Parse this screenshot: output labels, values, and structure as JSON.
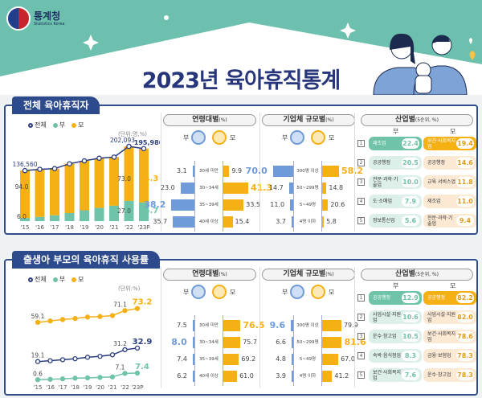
{
  "header": {
    "org_name": "통계청",
    "org_name_en": "Statistics Korea",
    "title": "2023년 육아휴직통계"
  },
  "colors": {
    "navy": "#2b3d7c",
    "father": "#6fc3a8",
    "mother": "#f5b014",
    "father_bar": "#6f9bd8",
    "teal": "#6cc0ad"
  },
  "legend": {
    "total": "전체",
    "father": "부",
    "mother": "모"
  },
  "sections": [
    {
      "title": "전체 육아휴직자",
      "unit": "(단위:명,%)",
      "age_heading": "연령대별",
      "age_unit": "(%)",
      "size_heading": "기업체 규모별",
      "size_unit": "(%)",
      "industry_heading": "산업별",
      "industry_unit": "(5순위, %)"
    },
    {
      "title": "출생아 부모의 육아휴직 사용률",
      "unit": "(단위:%)",
      "age_heading": "연령대별",
      "age_unit": "(%)",
      "size_heading": "기업체 규모별",
      "size_unit": "(%)",
      "industry_heading": "산업별",
      "industry_unit": "(5순위, %)"
    }
  ],
  "chart_data": [
    {
      "type": "bar+line",
      "stacked": true,
      "categories": [
        "'15",
        "'16",
        "'17",
        "'18",
        "'19",
        "'20",
        "'21",
        "'22",
        "'23P"
      ],
      "total": {
        "name": "전체",
        "values": [
          136560,
          140000,
          142000,
          155000,
          163000,
          170000,
          173000,
          202093,
          195986
        ],
        "labels": [
          "136,560",
          null,
          null,
          null,
          null,
          null,
          null,
          "202,093",
          "195,986"
        ]
      },
      "series": [
        {
          "name": "부",
          "values": [
            6.0,
            8.0,
            11.0,
            14.0,
            18.0,
            21.0,
            24.0,
            27.0,
            25.7
          ],
          "labels": [
            "6.0",
            null,
            null,
            null,
            null,
            null,
            null,
            "27.0",
            "25.7"
          ]
        },
        {
          "name": "모",
          "values": [
            94.0,
            92.0,
            89.0,
            86.0,
            82.0,
            79.0,
            76.0,
            73.0,
            74.3
          ],
          "labels": [
            "94.0",
            null,
            null,
            null,
            null,
            null,
            null,
            "73.0",
            "74.3"
          ]
        }
      ]
    },
    {
      "type": "line",
      "categories": [
        "'15",
        "'16",
        "'17",
        "'18",
        "'19",
        "'20",
        "'21",
        "'22",
        "'23P"
      ],
      "series": [
        {
          "name": "모",
          "values": [
            59.1,
            60.5,
            62.0,
            63.0,
            64.5,
            65.0,
            66.0,
            71.1,
            73.2
          ],
          "labels": [
            "59.1",
            null,
            null,
            null,
            null,
            null,
            null,
            "71.1",
            "73.2"
          ]
        },
        {
          "name": "전체",
          "values": [
            19.1,
            20.0,
            21.0,
            22.0,
            23.5,
            24.5,
            26.0,
            31.2,
            32.9
          ],
          "labels": [
            "19.1",
            null,
            null,
            null,
            null,
            null,
            null,
            "31.2",
            "32.9"
          ]
        },
        {
          "name": "부",
          "values": [
            0.6,
            1.0,
            1.5,
            2.2,
            2.5,
            3.0,
            3.5,
            7.1,
            7.4
          ],
          "labels": [
            "0.6",
            null,
            null,
            null,
            null,
            null,
            null,
            "7.1",
            "7.4"
          ]
        }
      ]
    },
    {
      "type": "bar",
      "orientation": "diverging",
      "categories": [
        "30세 미만",
        "30~34세",
        "35~39세",
        "40세 이상"
      ],
      "series": [
        {
          "name": "부",
          "values": [
            3.1,
            23.0,
            38.2,
            35.7
          ]
        },
        {
          "name": "모",
          "values": [
            9.9,
            41.3,
            33.5,
            15.4
          ]
        }
      ]
    },
    {
      "type": "bar",
      "orientation": "diverging",
      "categories": [
        "300명 이상",
        "50~299명",
        "5~49명",
        "4명 이하"
      ],
      "series": [
        {
          "name": "부",
          "values": [
            70.0,
            14.7,
            11.0,
            3.7
          ]
        },
        {
          "name": "모",
          "values": [
            58.2,
            14.8,
            20.6,
            5.8
          ]
        }
      ]
    },
    {
      "type": "table",
      "ranks": [
        "1",
        "2",
        "3",
        "4",
        "5"
      ],
      "father": [
        {
          "name": "제조업",
          "value": "22.4"
        },
        {
          "name": "공공행정",
          "value": "20.5"
        },
        {
          "name": "전문·과학·기술업",
          "value": "10.0"
        },
        {
          "name": "도·소매업",
          "value": "7.9"
        },
        {
          "name": "정보통신업",
          "value": "5.6"
        }
      ],
      "mother": [
        {
          "name": "보건·사회복지업",
          "value": "19.4"
        },
        {
          "name": "공공행정",
          "value": "14.6"
        },
        {
          "name": "교육 서비스업",
          "value": "11.8"
        },
        {
          "name": "제조업",
          "value": "11.0"
        },
        {
          "name": "전문·과학·기술업",
          "value": "9.4"
        }
      ]
    },
    {
      "type": "bar",
      "orientation": "diverging",
      "categories": [
        "30세 미만",
        "30~34세",
        "35~39세",
        "40세 이상"
      ],
      "series": [
        {
          "name": "부",
          "values": [
            7.5,
            8.0,
            7.4,
            6.2
          ]
        },
        {
          "name": "모",
          "values": [
            76.5,
            75.7,
            69.2,
            61.0
          ]
        }
      ]
    },
    {
      "type": "bar",
      "orientation": "diverging",
      "categories": [
        "300명 이상",
        "50~299명",
        "5~49명",
        "4명 이하"
      ],
      "series": [
        {
          "name": "부",
          "values": [
            9.6,
            6.6,
            4.8,
            3.9
          ]
        },
        {
          "name": "모",
          "values": [
            79.9,
            81.6,
            67.0,
            41.2
          ]
        }
      ]
    },
    {
      "type": "table",
      "ranks": [
        "1",
        "2",
        "3",
        "4",
        "5"
      ],
      "father": [
        {
          "name": "공공행정",
          "value": "12.9"
        },
        {
          "name": "사업시설·지원업",
          "value": "10.6"
        },
        {
          "name": "운수·창고업",
          "value": "10.5"
        },
        {
          "name": "숙박·음식점업",
          "value": "8.3"
        },
        {
          "name": "보건·사회복지업",
          "value": "7.6"
        }
      ],
      "mother": [
        {
          "name": "공공행정",
          "value": "82.2"
        },
        {
          "name": "사업시설·지원업",
          "value": "82.0"
        },
        {
          "name": "보건·사회복지업",
          "value": "78.6"
        },
        {
          "name": "금융·보험업",
          "value": "78.3"
        },
        {
          "name": "운수·창고업",
          "value": "78.3"
        }
      ]
    }
  ]
}
